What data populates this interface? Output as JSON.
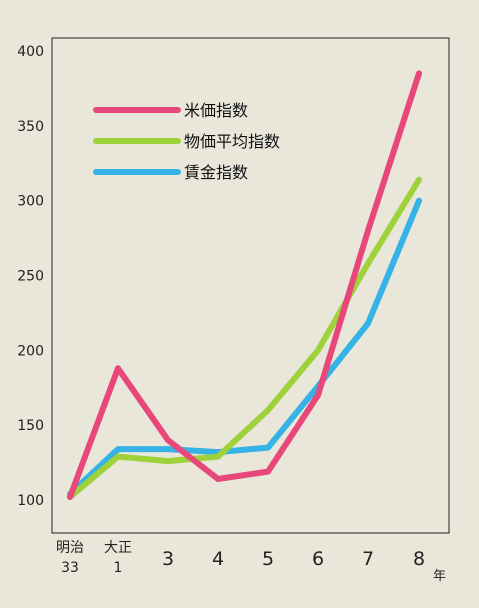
{
  "chart_data": {
    "type": "line",
    "title": "",
    "xlabel": "",
    "ylabel": "",
    "x_unit": "年",
    "ylim": [
      100,
      400
    ],
    "y_ticks": [
      100,
      150,
      200,
      250,
      300,
      350,
      400
    ],
    "categories": [
      {
        "era": "明治",
        "num": "33"
      },
      {
        "era": "大正",
        "num": "1"
      },
      {
        "era": "",
        "num": "3"
      },
      {
        "era": "",
        "num": "4"
      },
      {
        "era": "",
        "num": "5"
      },
      {
        "era": "",
        "num": "6"
      },
      {
        "era": "",
        "num": "7"
      },
      {
        "era": "",
        "num": "8"
      }
    ],
    "series": [
      {
        "name": "米価指数",
        "color": "#e8477a",
        "values": [
          102,
          188,
          140,
          114,
          119,
          170,
          280,
          385
        ]
      },
      {
        "name": "物価平均指数",
        "color": "#9fd23a",
        "values": [
          102,
          129,
          126,
          129,
          160,
          200,
          258,
          314
        ]
      },
      {
        "name": "賃金指数",
        "color": "#35b2e6",
        "values": [
          104,
          134,
          134,
          132,
          135,
          176,
          218,
          300
        ]
      }
    ],
    "legend": "top-left",
    "grid": false
  }
}
